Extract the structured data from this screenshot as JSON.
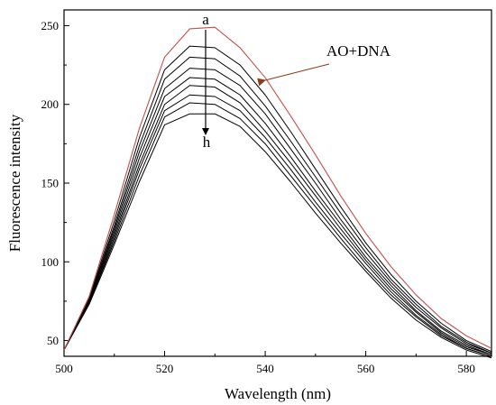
{
  "chart_data": {
    "type": "line",
    "xlabel": "Wavelength (nm)",
    "ylabel": "Fluorescence intensity",
    "xlim": [
      500,
      585
    ],
    "ylim": [
      40,
      260
    ],
    "x_ticks": [
      500,
      520,
      540,
      560,
      580
    ],
    "y_ticks": [
      50,
      100,
      150,
      200,
      250
    ],
    "x_tick_labels": [
      "500",
      "520",
      "540",
      "560",
      "580"
    ],
    "y_tick_labels": [
      "50",
      "100",
      "150",
      "200",
      "250"
    ],
    "grid": false,
    "legend": "none",
    "x": [
      500,
      505,
      510,
      515,
      520,
      525,
      530,
      535,
      540,
      545,
      550,
      555,
      560,
      565,
      570,
      575,
      580,
      585
    ],
    "series": [
      {
        "name": "AO+DNA",
        "color": "#c0504d",
        "values": [
          44,
          78,
          130,
          185,
          230,
          248,
          249,
          236,
          217,
          193,
          168,
          142,
          118,
          97,
          79,
          64,
          53,
          45
        ]
      },
      {
        "name": "a",
        "color": "#000000",
        "values": [
          44,
          77,
          126,
          179,
          222,
          237,
          236,
          225,
          206,
          183,
          159,
          135,
          112,
          92,
          75,
          61,
          50,
          43
        ]
      },
      {
        "name": "",
        "color": "#000000",
        "values": [
          44,
          76,
          123,
          174,
          216,
          230,
          229,
          218,
          199,
          177,
          154,
          131,
          109,
          89,
          73,
          59,
          49,
          42
        ]
      },
      {
        "name": "",
        "color": "#000000",
        "values": [
          44,
          76,
          121,
          170,
          210,
          223,
          222,
          212,
          194,
          172,
          150,
          127,
          106,
          87,
          71,
          58,
          48,
          42
        ]
      },
      {
        "name": "",
        "color": "#000000",
        "values": [
          44,
          75,
          119,
          166,
          205,
          217,
          216,
          206,
          188,
          167,
          145,
          124,
          103,
          85,
          69,
          56,
          47,
          41
        ]
      },
      {
        "name": "",
        "color": "#000000",
        "values": [
          44,
          75,
          117,
          162,
          200,
          212,
          211,
          201,
          183,
          163,
          142,
          121,
          101,
          83,
          68,
          55,
          46,
          41
        ]
      },
      {
        "name": "",
        "color": "#000000",
        "values": [
          44,
          74,
          115,
          159,
          196,
          206,
          205,
          196,
          179,
          159,
          138,
          118,
          99,
          81,
          66,
          54,
          45,
          40
        ]
      },
      {
        "name": "",
        "color": "#000000",
        "values": [
          44,
          74,
          113,
          155,
          192,
          201,
          200,
          191,
          175,
          155,
          135,
          115,
          96,
          79,
          65,
          53,
          45,
          40
        ]
      },
      {
        "name": "h",
        "color": "#000000",
        "values": [
          44,
          73,
          111,
          151,
          187,
          194,
          194,
          186,
          170,
          151,
          131,
          112,
          94,
          77,
          63,
          52,
          44,
          39
        ]
      }
    ],
    "annotations": {
      "top_label": "a",
      "bottom_label": "h",
      "series_label": "AO+DNA",
      "arrow_direction": "down"
    }
  }
}
